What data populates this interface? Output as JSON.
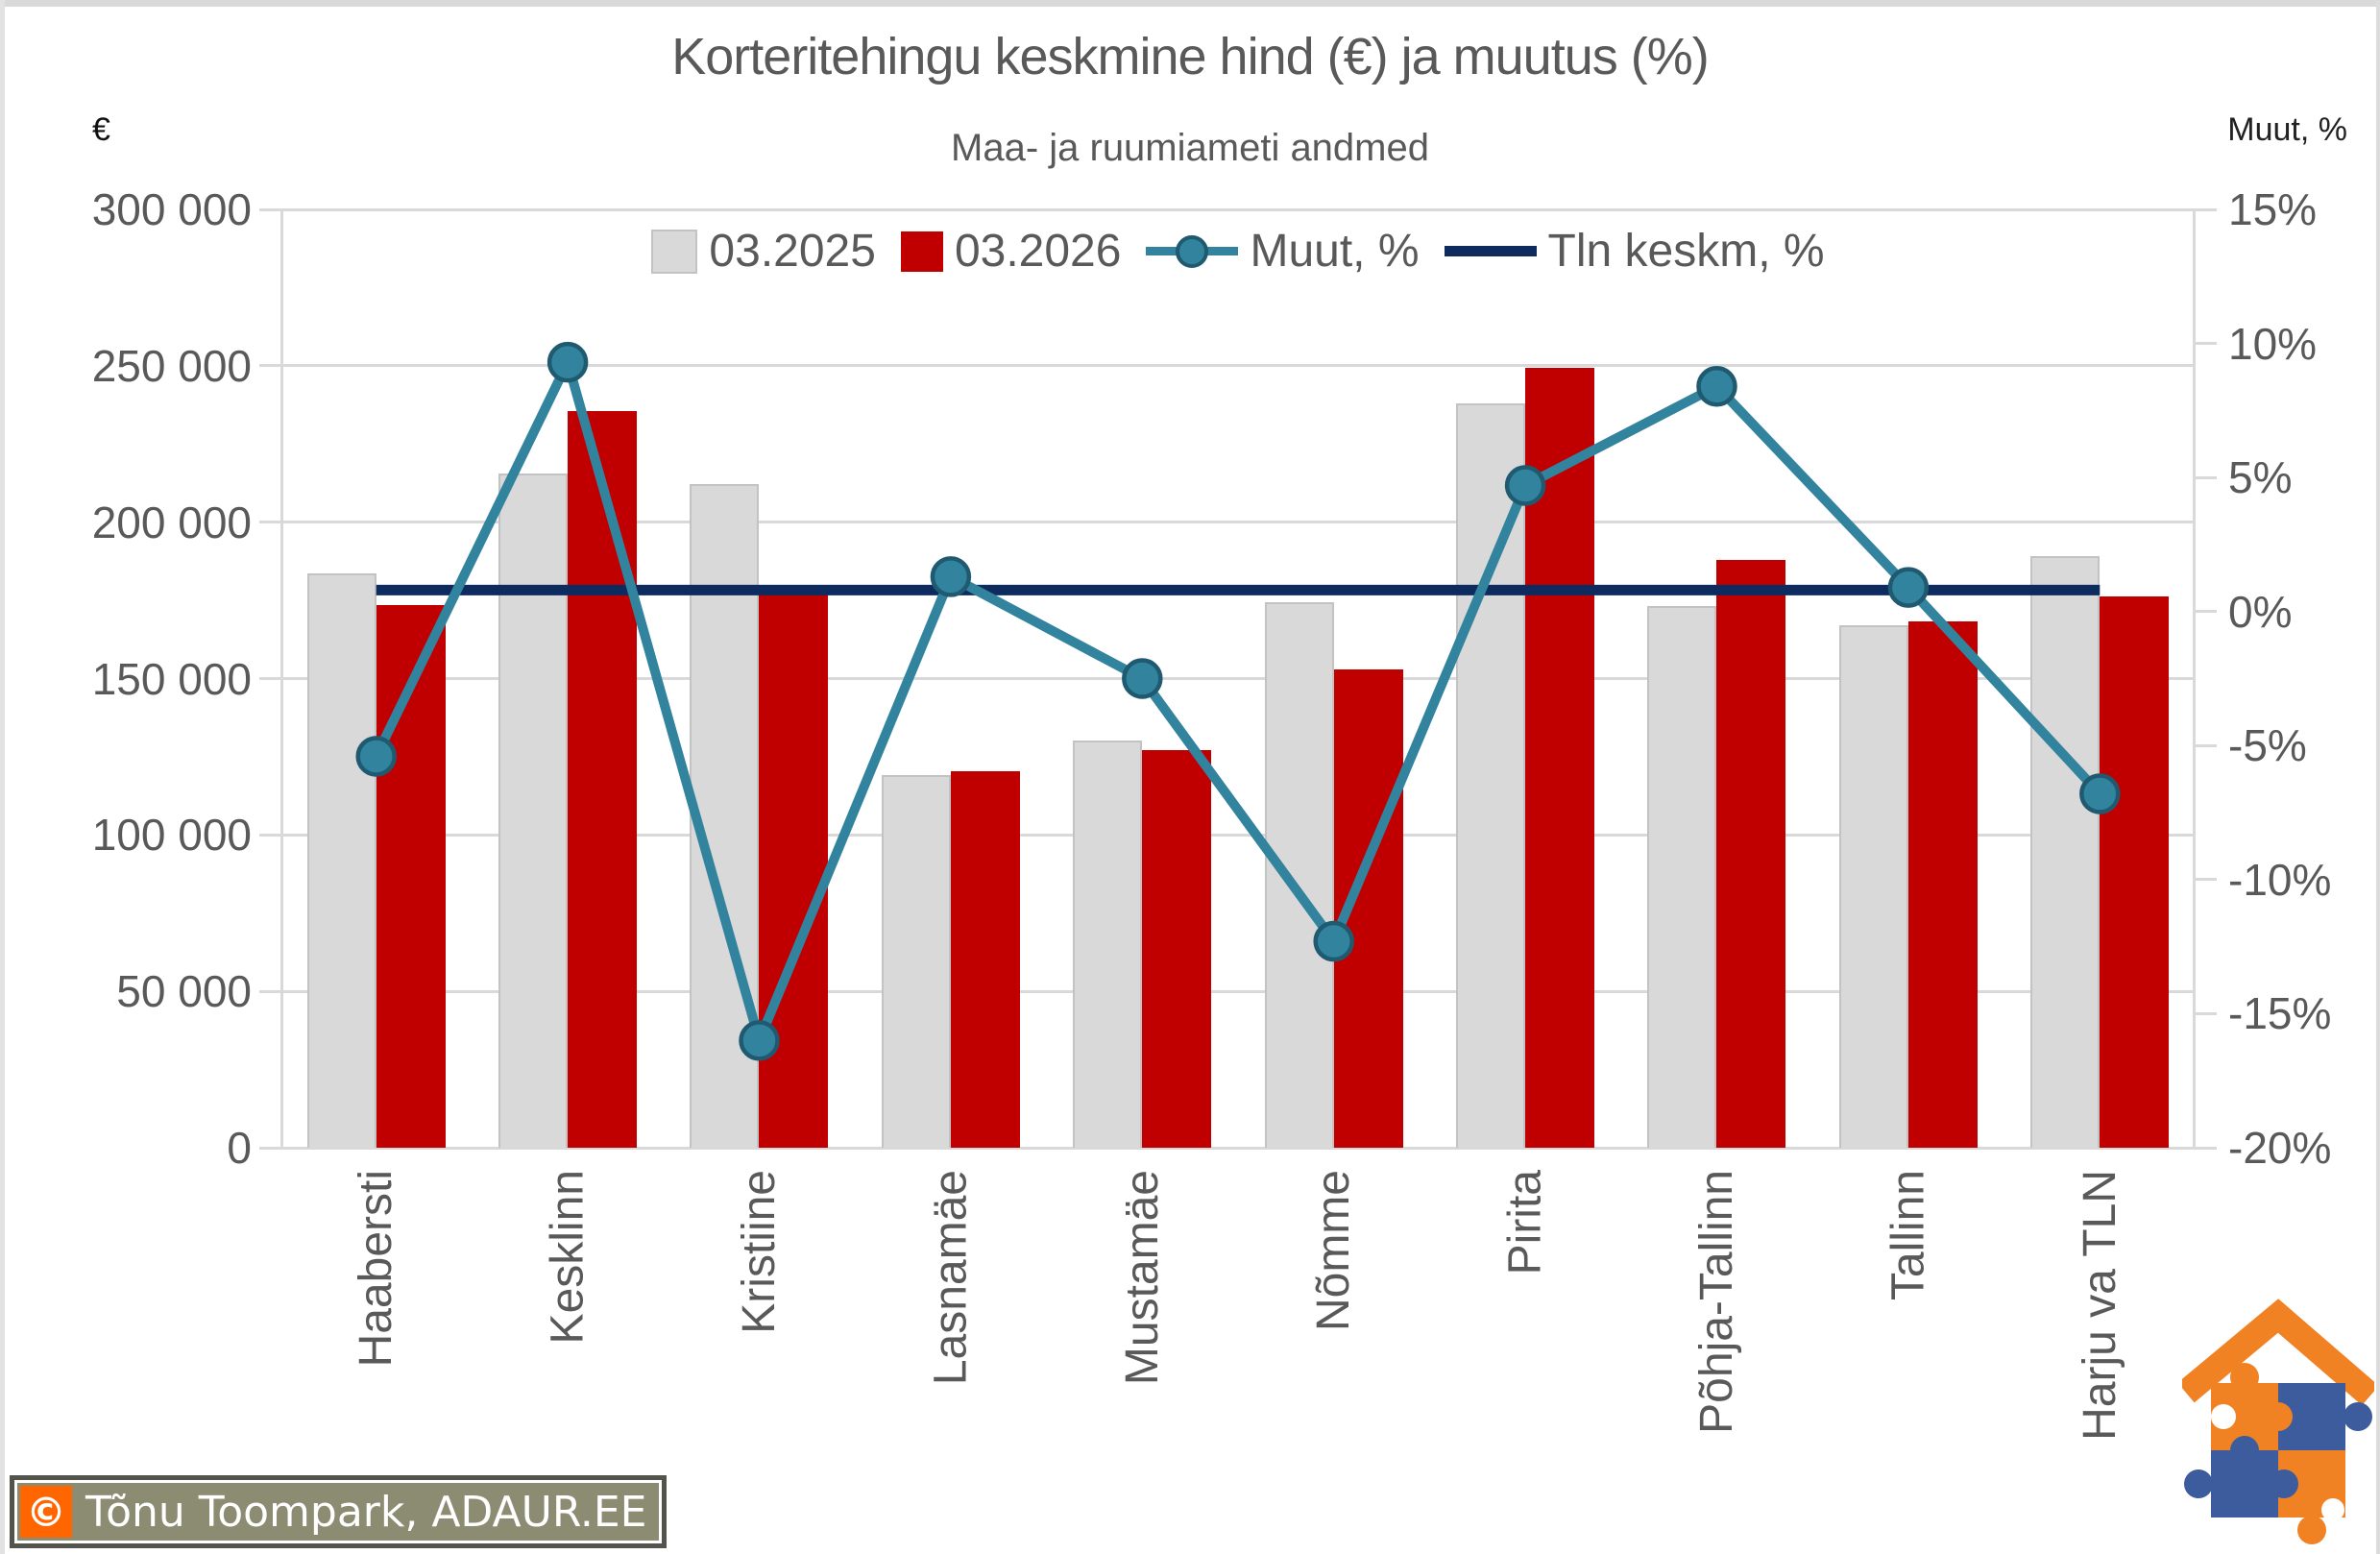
{
  "page": {
    "eur_label": "€",
    "muut_label": "Muut, %"
  },
  "chart_data": {
    "type": "bar",
    "subtype": "grouped-bars-with-line-overlay",
    "title": "Korteritehingu keskmine hind (€) ja muutus (%)",
    "subtitle": "Maa- ja ruumiameti andmed",
    "categories": [
      "Haabersti",
      "Kesklinn",
      "Kristiine",
      "Lasnamäe",
      "Mustamäe",
      "Nõmme",
      "Pirita",
      "Põhja-Tallinn",
      "Tallinn",
      "Harju va TLN"
    ],
    "series": [
      {
        "name": "03.2025",
        "type": "bar",
        "axis": "left",
        "color": "#d9d9d9",
        "border": "#c3c3c3",
        "values": [
          183500,
          215500,
          212200,
          119000,
          130300,
          174300,
          238000,
          173200,
          166900,
          189100
        ]
      },
      {
        "name": "03.2026",
        "type": "bar",
        "axis": "left",
        "color": "#c00000",
        "values": [
          173600,
          235500,
          178200,
          120500,
          127100,
          152800,
          249300,
          187800,
          168300,
          176300
        ]
      },
      {
        "name": "Muut, %",
        "type": "line",
        "axis": "right",
        "color": "#31839e",
        "marker_border": "#1f5a70",
        "values": [
          -5.4,
          9.3,
          -16.0,
          1.3,
          -2.5,
          -12.3,
          4.7,
          8.4,
          0.9,
          -6.8
        ]
      },
      {
        "name": "Tln keskm, %",
        "type": "reference-line",
        "axis": "right",
        "color": "#0d2b5e",
        "value": 0.8
      }
    ],
    "left_axis": {
      "label": "€",
      "min": 0,
      "max": 300000,
      "ticks": [
        "300 000",
        "250 000",
        "200 000",
        "150 000",
        "100 000",
        "50 000",
        "0"
      ]
    },
    "right_axis": {
      "label": "Muut, %",
      "min": -20,
      "max": 15,
      "ticks": [
        "15%",
        "10%",
        "5%",
        "0%",
        "-5%",
        "-10%",
        "-15%",
        "-20%"
      ]
    },
    "legend_position": "top",
    "grid": true
  },
  "footer": {
    "copyright": "©",
    "credit": "Tõnu Toompark, ADAUR.EE"
  },
  "colors": {
    "title": "#595959",
    "gridline": "#d9d9d9",
    "bar_2025": "#d9d9d9",
    "bar_2026": "#c00000",
    "muut_line": "#31839e",
    "tln_line": "#0d2b5e",
    "footer_bg": "#8b8c72",
    "footer_orange": "#ff6600",
    "logo_orange": "#f08223",
    "logo_blue": "#3d5c9e"
  }
}
